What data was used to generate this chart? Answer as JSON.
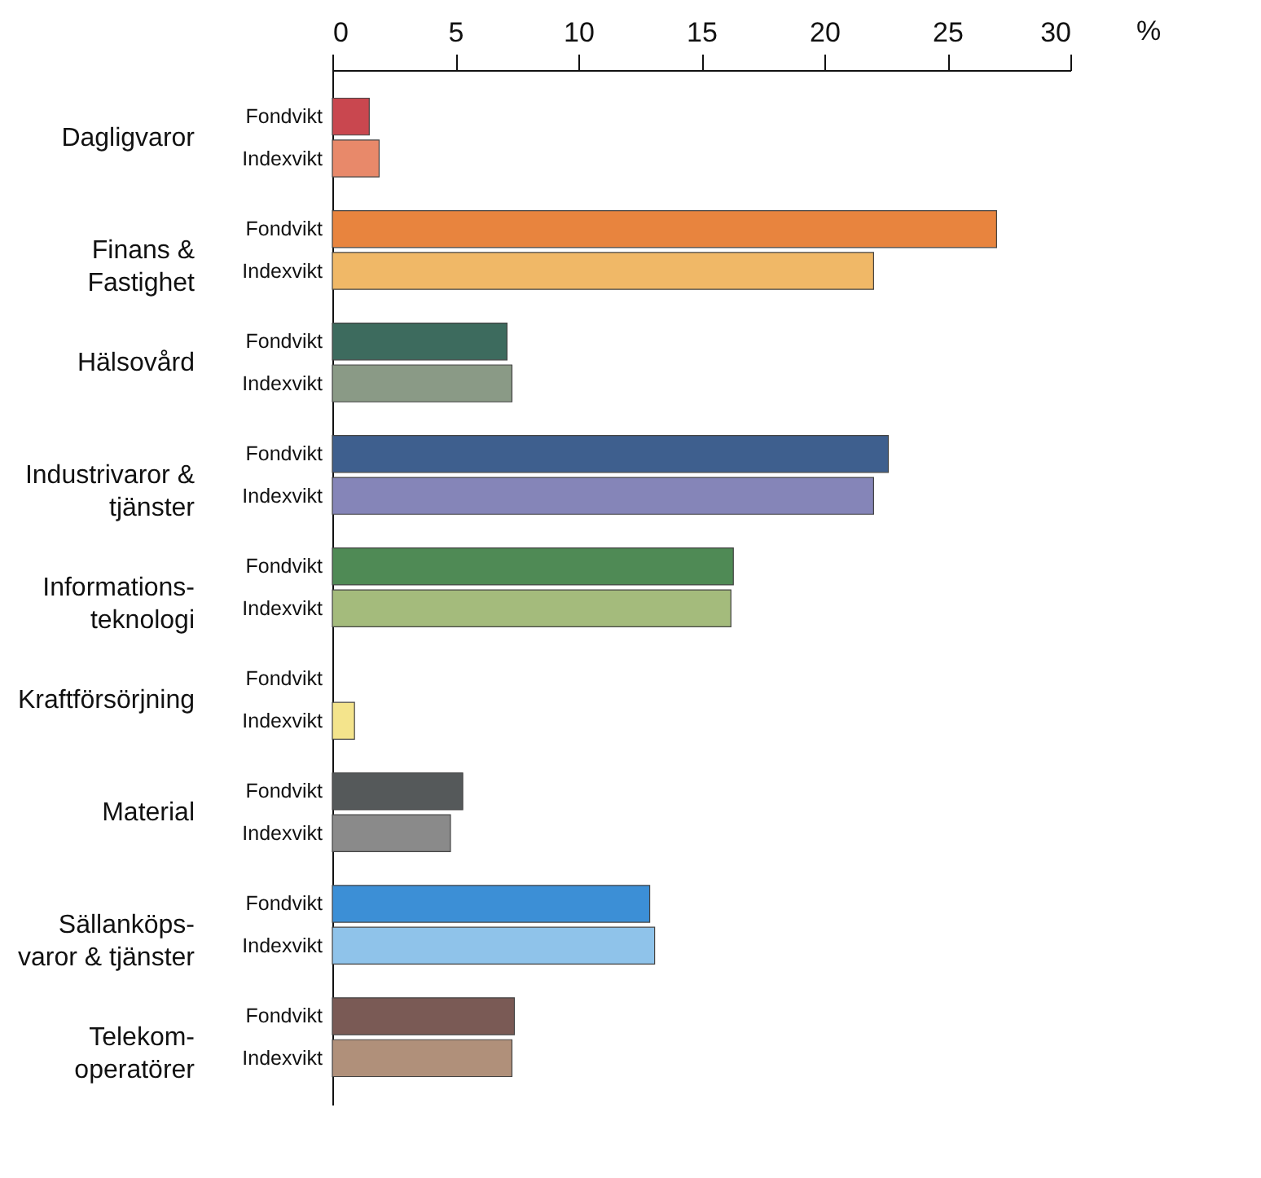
{
  "chart_data": {
    "type": "bar",
    "orientation": "horizontal",
    "xlabel": "%",
    "categories": [
      "Dagligvaror",
      "Finans &\nFastighet",
      "Hälsovård",
      "Industrivaror &\ntjänster",
      "Informations-\nteknologi",
      "Kraftförsörjning",
      "Material",
      "Sällanköps-\nvaror & tjänster",
      "Telekom-\noperatörer"
    ],
    "series": [
      {
        "name": "Fondvikt",
        "values": [
          1.5,
          27.0,
          7.1,
          22.6,
          16.3,
          null,
          5.3,
          12.9,
          7.4
        ],
        "colors": [
          "#c9474f",
          "#e8843e",
          "#3d6b5e",
          "#3e5f8e",
          "#4f8a55",
          "#e6c95a",
          "#55595a",
          "#3c8fd6",
          "#7a5a55"
        ]
      },
      {
        "name": "Indexvikt",
        "values": [
          1.9,
          22.0,
          7.3,
          22.0,
          16.2,
          0.9,
          4.8,
          13.1,
          7.3
        ],
        "colors": [
          "#e8896a",
          "#f0b867",
          "#8a9a86",
          "#8585b8",
          "#a4bb7c",
          "#f4e48c",
          "#8a8a8a",
          "#8fc3ea",
          "#b0907a"
        ]
      }
    ],
    "xlim": [
      0,
      30
    ],
    "xticks": [
      0,
      5,
      10,
      15,
      20,
      25,
      30
    ],
    "grid": false
  }
}
